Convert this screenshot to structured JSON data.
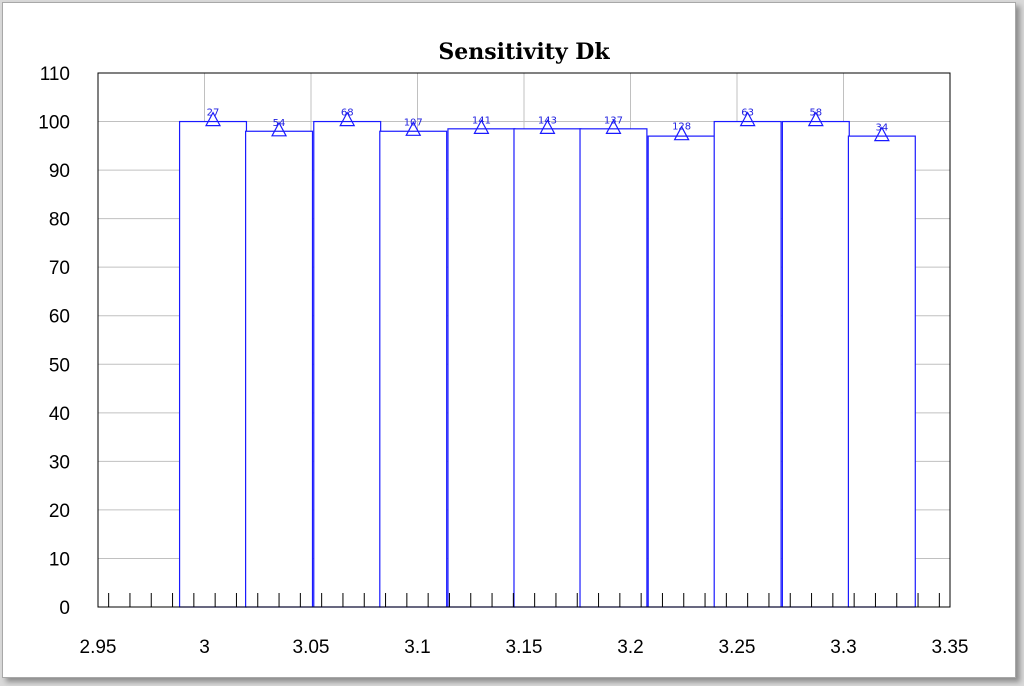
{
  "chart_data": {
    "type": "bar",
    "title": "Sensitivity Dk",
    "xlabel": "",
    "ylabel": "",
    "xlim": [
      2.95,
      3.35
    ],
    "ylim": [
      0,
      110
    ],
    "x_ticks": [
      "2.95",
      "3",
      "3.05",
      "3.1",
      "3.15",
      "3.2",
      "3.25",
      "3.3",
      "3.35"
    ],
    "y_ticks": [
      "0",
      "10",
      "20",
      "30",
      "40",
      "50",
      "60",
      "70",
      "80",
      "90",
      "100",
      "110"
    ],
    "grid": true,
    "bin_width": 0.0314,
    "bins": [
      {
        "x": 3.004,
        "value": 100,
        "marker": 100.4,
        "label": "27"
      },
      {
        "x": 3.035,
        "value": 98,
        "marker": 98.3,
        "label": "54"
      },
      {
        "x": 3.067,
        "value": 100,
        "marker": 100.4,
        "label": "68"
      },
      {
        "x": 3.098,
        "value": 98,
        "marker": 98.4,
        "label": "107"
      },
      {
        "x": 3.13,
        "value": 98.5,
        "marker": 98.8,
        "label": "141"
      },
      {
        "x": 3.161,
        "value": 98.5,
        "marker": 98.8,
        "label": "143"
      },
      {
        "x": 3.192,
        "value": 98.5,
        "marker": 98.8,
        "label": "137"
      },
      {
        "x": 3.224,
        "value": 97,
        "marker": 97.5,
        "label": "128"
      },
      {
        "x": 3.255,
        "value": 100,
        "marker": 100.4,
        "label": "63"
      },
      {
        "x": 3.287,
        "value": 100,
        "marker": 100.4,
        "label": "58"
      },
      {
        "x": 3.318,
        "value": 97,
        "marker": 97.3,
        "label": "34"
      }
    ],
    "colors": {
      "bars": "#1a1aff",
      "markers": "#1a1aff",
      "labels": "#2020e0",
      "grid": "#c0c0c0",
      "axis": "#000000"
    }
  }
}
